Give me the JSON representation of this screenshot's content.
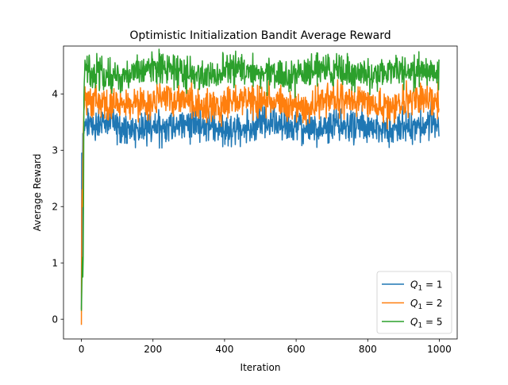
{
  "chart_data": {
    "type": "line",
    "title": "Optimistic Initialization Bandit Average Reward",
    "xlabel": "Iteration",
    "ylabel": "Average Reward",
    "xlim": [
      -50,
      1050
    ],
    "ylim": [
      -0.35,
      4.85
    ],
    "xticks": [
      0,
      200,
      400,
      600,
      800,
      1000
    ],
    "yticks": [
      0,
      1,
      2,
      3,
      4
    ],
    "grid": false,
    "legend_position": "lower-right",
    "n_points": 1000,
    "series": [
      {
        "name": "Q1 = 1",
        "legend_base": "Q",
        "legend_sub": "1",
        "legend_rest": " = 1",
        "color": "#1f77b4",
        "start_values": [
          0.18,
          2.95,
          1.1,
          2.6,
          3.3,
          3.2,
          3.45,
          3.3,
          3.4,
          3.35
        ],
        "plateau_mean": 3.42,
        "noise_amplitude": 0.16,
        "notable_min": [
          430,
          3.1
        ]
      },
      {
        "name": "Q1 = 2",
        "legend_base": "Q",
        "legend_sub": "1",
        "legend_rest": " = 2",
        "color": "#ff7f0e",
        "start_values": [
          -0.1,
          1.95,
          2.3,
          2.0,
          2.8,
          3.0,
          3.5,
          3.7,
          3.75,
          3.8
        ],
        "plateau_mean": 3.84,
        "noise_amplitude": 0.16,
        "notable_min": [
          30,
          3.58
        ]
      },
      {
        "name": "Q1 = 5",
        "legend_base": "Q",
        "legend_sub": "1",
        "legend_rest": " = 5",
        "color": "#2ca02c",
        "start_values": [
          0.15,
          0.5,
          0.9,
          1.1,
          0.75,
          1.1,
          2.2,
          3.9,
          4.2,
          4.35,
          4.6,
          4.5
        ],
        "plateau_mean": 4.38,
        "noise_amplitude": 0.16,
        "notable_max": [
          240,
          4.68
        ]
      }
    ]
  }
}
